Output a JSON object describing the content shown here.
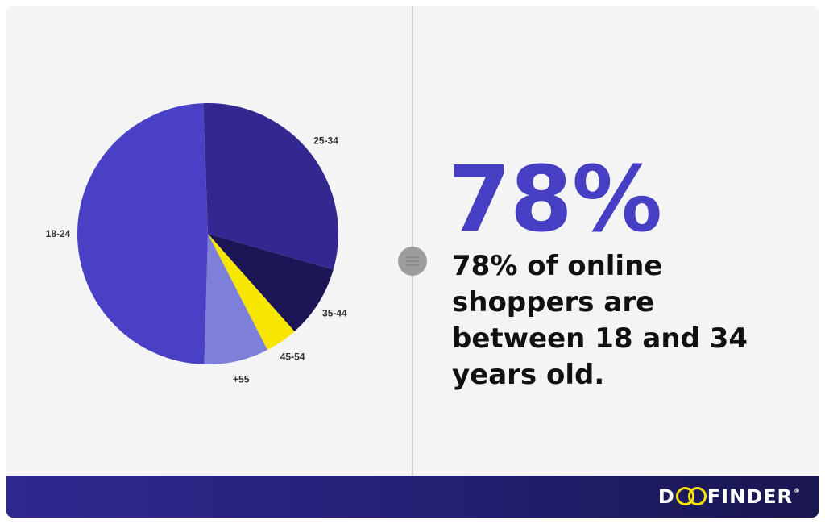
{
  "chart_data": {
    "type": "pie",
    "categories": [
      "25-34",
      "35-44",
      "45-54",
      "+55",
      "18-24"
    ],
    "values": [
      30,
      9,
      4,
      8,
      49
    ],
    "colors": [
      "#33288f",
      "#1b1556",
      "#f7e600",
      "#7d7fd8",
      "#4940c6"
    ],
    "start_angle_deg": 358,
    "title": "",
    "legend": "none"
  },
  "stat": {
    "value": "78%",
    "description": "78% of online shoppers are between 18 and 34 years old."
  },
  "footer": {
    "logo_d": "D",
    "logo_rest": "FINDER",
    "logo_mark": "®",
    "logo_text": "DOOFINDER"
  }
}
